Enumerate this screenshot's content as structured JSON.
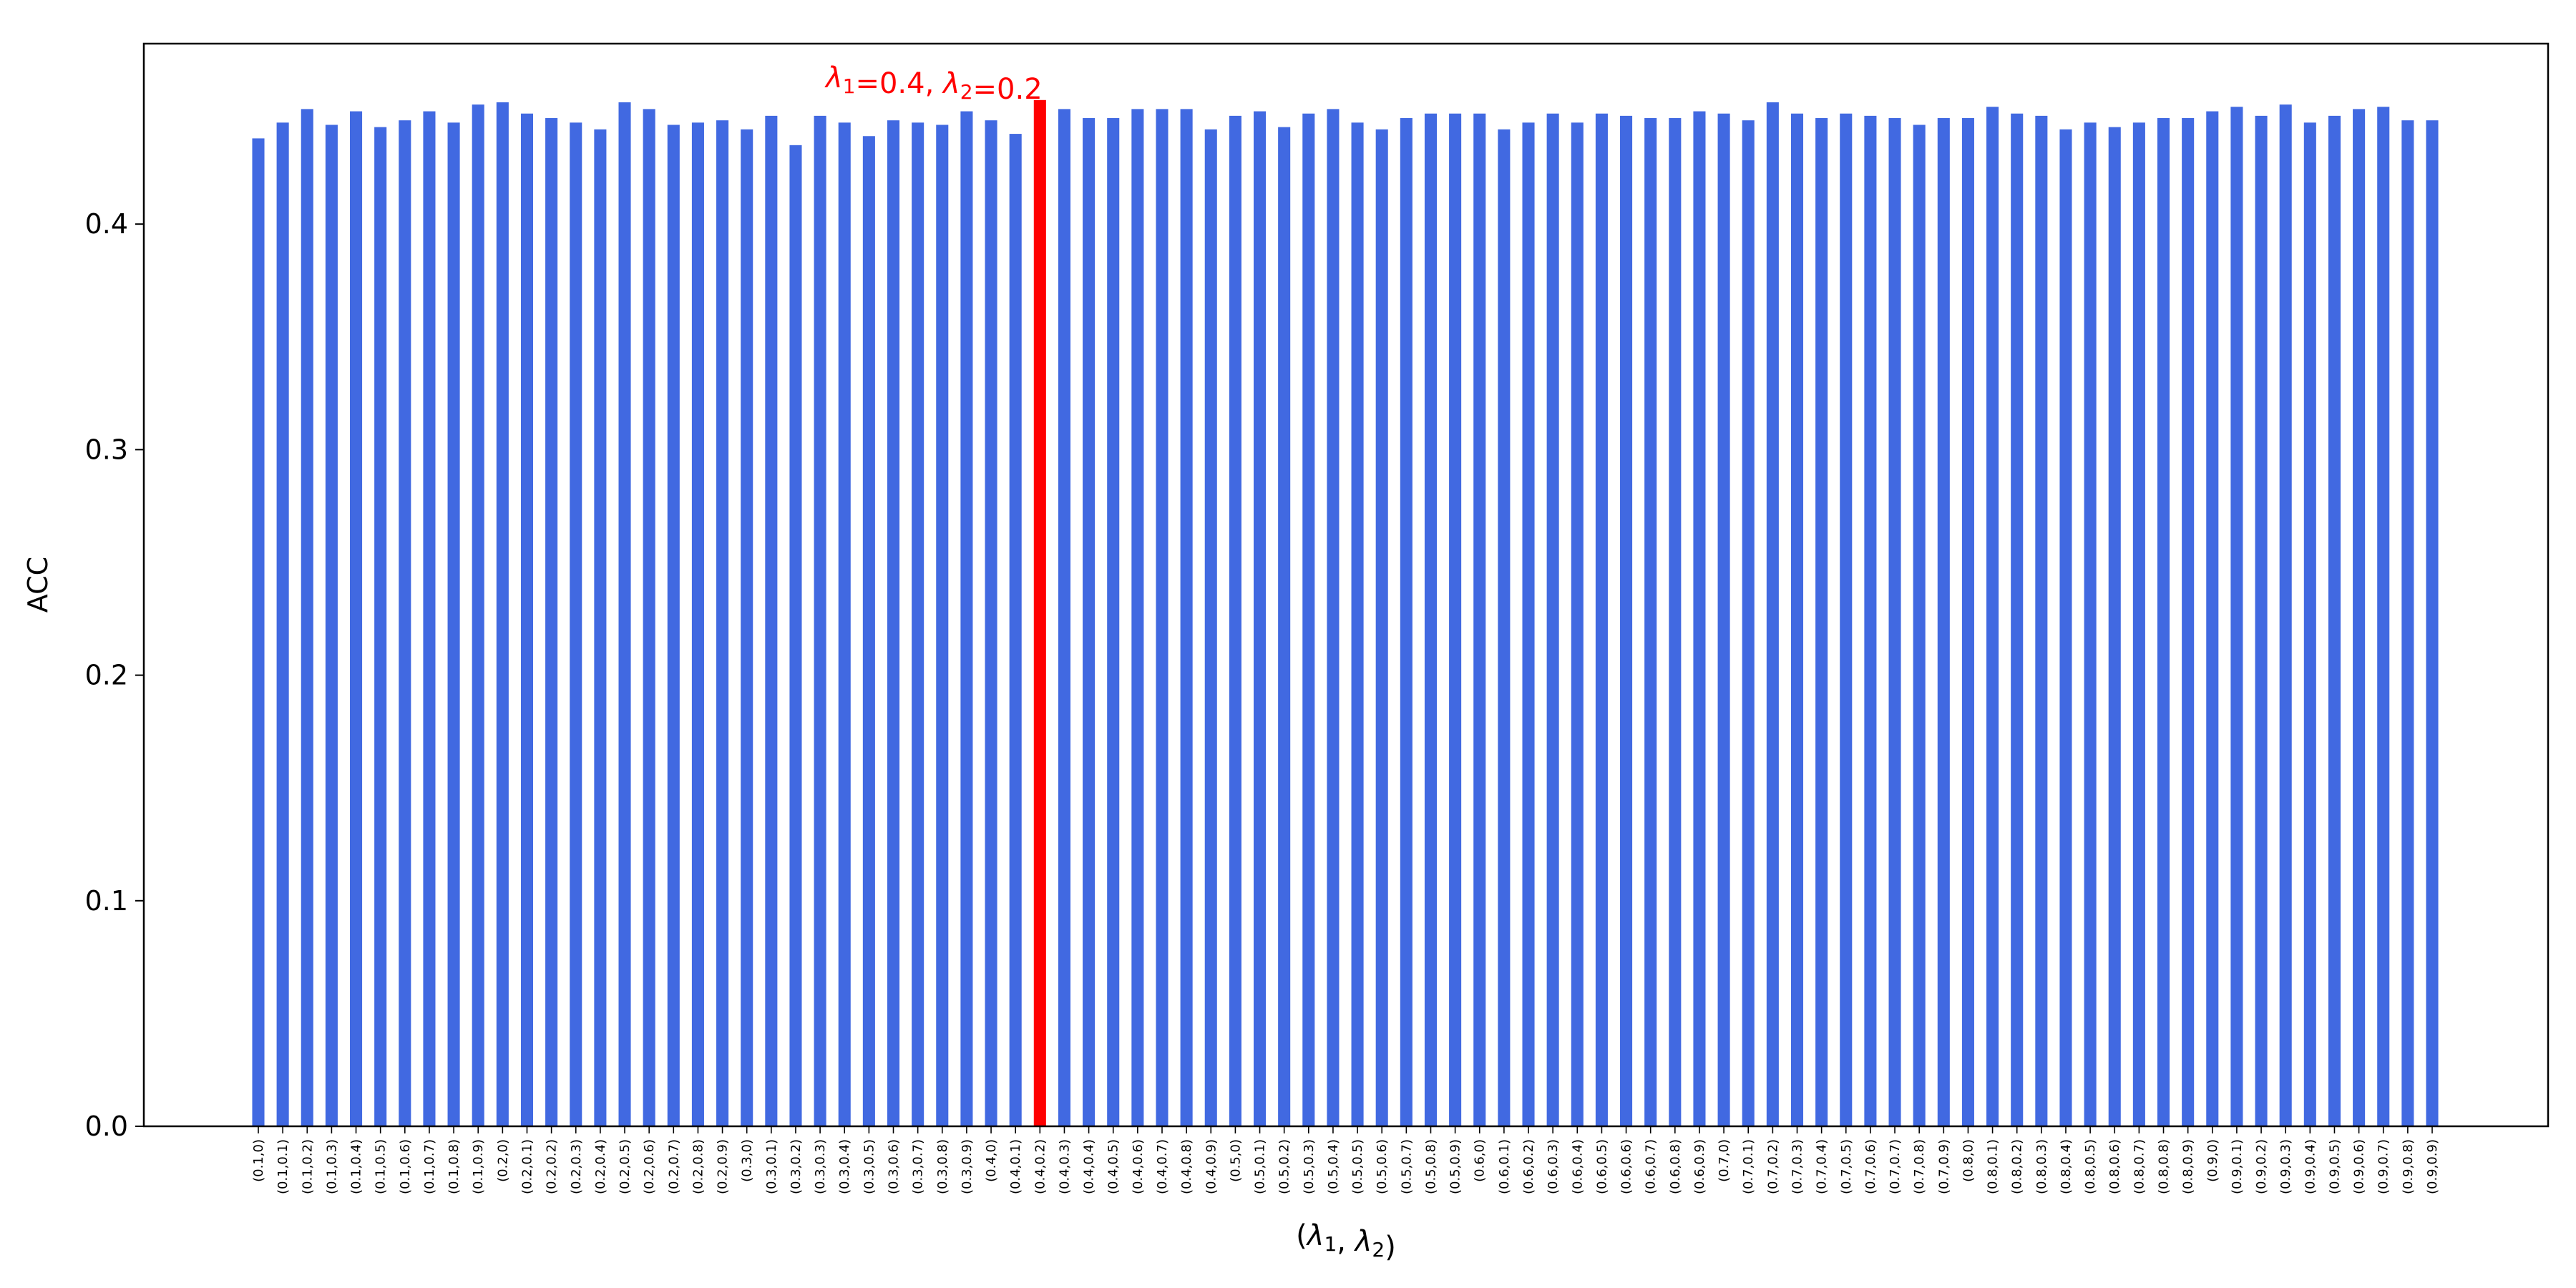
{
  "chart_data": {
    "type": "bar",
    "xlabel": "(λ1, λ2)",
    "ylabel": "ACC",
    "ylim": [
      0.0,
      0.48
    ],
    "yticks": [
      0.0,
      0.1,
      0.2,
      0.3,
      0.4
    ],
    "ytick_labels": [
      "0.0",
      "0.1",
      "0.2",
      "0.3",
      "0.4"
    ],
    "grid": false,
    "bar_color": "#4169e1",
    "highlight_color": "#ff0000",
    "highlight_index": 32,
    "annotation": {
      "lambda1_symbol": "λ",
      "lambda1_sub": "1",
      "lambda1_value": "=0.4, ",
      "lambda2_symbol": "λ",
      "lambda2_sub": "2",
      "lambda2_value": "=0.2"
    },
    "categories": [
      "(0.1,0)",
      "(0.1,0.1)",
      "(0.1,0.2)",
      "(0.1,0.3)",
      "(0.1,0.4)",
      "(0.1,0.5)",
      "(0.1,0.6)",
      "(0.1,0.7)",
      "(0.1,0.8)",
      "(0.1,0.9)",
      "(0.2,0)",
      "(0.2,0.1)",
      "(0.2,0.2)",
      "(0.2,0.3)",
      "(0.2,0.4)",
      "(0.2,0.5)",
      "(0.2,0.6)",
      "(0.2,0.7)",
      "(0.2,0.8)",
      "(0.2,0.9)",
      "(0.3,0)",
      "(0.3,0.1)",
      "(0.3,0.2)",
      "(0.3,0.3)",
      "(0.3,0.4)",
      "(0.3,0.5)",
      "(0.3,0.6)",
      "(0.3,0.7)",
      "(0.3,0.8)",
      "(0.3,0.9)",
      "(0.4,0)",
      "(0.4,0.1)",
      "(0.4,0.2)",
      "(0.4,0.3)",
      "(0.4,0.4)",
      "(0.4,0.5)",
      "(0.4,0.6)",
      "(0.4,0.7)",
      "(0.4,0.8)",
      "(0.4,0.9)",
      "(0.5,0)",
      "(0.5,0.1)",
      "(0.5,0.2)",
      "(0.5,0.3)",
      "(0.5,0.4)",
      "(0.5,0.5)",
      "(0.5,0.6)",
      "(0.5,0.7)",
      "(0.5,0.8)",
      "(0.5,0.9)",
      "(0.6,0)",
      "(0.6,0.1)",
      "(0.6,0.2)",
      "(0.6,0.3)",
      "(0.6,0.4)",
      "(0.6,0.5)",
      "(0.6,0.6)",
      "(0.6,0.7)",
      "(0.6,0.8)",
      "(0.6,0.9)",
      "(0.7,0)",
      "(0.7,0.1)",
      "(0.7,0.2)",
      "(0.7,0.3)",
      "(0.7,0.4)",
      "(0.7,0.5)",
      "(0.7,0.6)",
      "(0.7,0.7)",
      "(0.7,0.8)",
      "(0.7,0.9)",
      "(0.8,0)",
      "(0.8,0.1)",
      "(0.8,0.2)",
      "(0.8,0.3)",
      "(0.8,0.4)",
      "(0.8,0.5)",
      "(0.8,0.6)",
      "(0.8,0.7)",
      "(0.8,0.8)",
      "(0.8,0.9)",
      "(0.9,0)",
      "(0.9,0.1)",
      "(0.9,0.2)",
      "(0.9,0.3)",
      "(0.9,0.4)",
      "(0.9,0.5)",
      "(0.9,0.6)",
      "(0.9,0.7)",
      "(0.9,0.8)",
      "(0.9,0.9)"
    ],
    "values": [
      0.438,
      0.445,
      0.451,
      0.444,
      0.45,
      0.443,
      0.446,
      0.45,
      0.445,
      0.453,
      0.454,
      0.449,
      0.447,
      0.445,
      0.442,
      0.454,
      0.451,
      0.444,
      0.445,
      0.446,
      0.442,
      0.448,
      0.435,
      0.448,
      0.445,
      0.439,
      0.446,
      0.445,
      0.444,
      0.45,
      0.446,
      0.44,
      0.455,
      0.451,
      0.447,
      0.447,
      0.451,
      0.451,
      0.451,
      0.442,
      0.448,
      0.45,
      0.443,
      0.449,
      0.451,
      0.445,
      0.442,
      0.447,
      0.449,
      0.449,
      0.449,
      0.442,
      0.445,
      0.449,
      0.445,
      0.449,
      0.448,
      0.447,
      0.447,
      0.45,
      0.449,
      0.446,
      0.454,
      0.449,
      0.447,
      0.449,
      0.448,
      0.447,
      0.444,
      0.447,
      0.447,
      0.452,
      0.449,
      0.448,
      0.442,
      0.445,
      0.443,
      0.445,
      0.447,
      0.447,
      0.45,
      0.452,
      0.448,
      0.453,
      0.445,
      0.448,
      0.451,
      0.452,
      0.446,
      0.446
    ]
  }
}
